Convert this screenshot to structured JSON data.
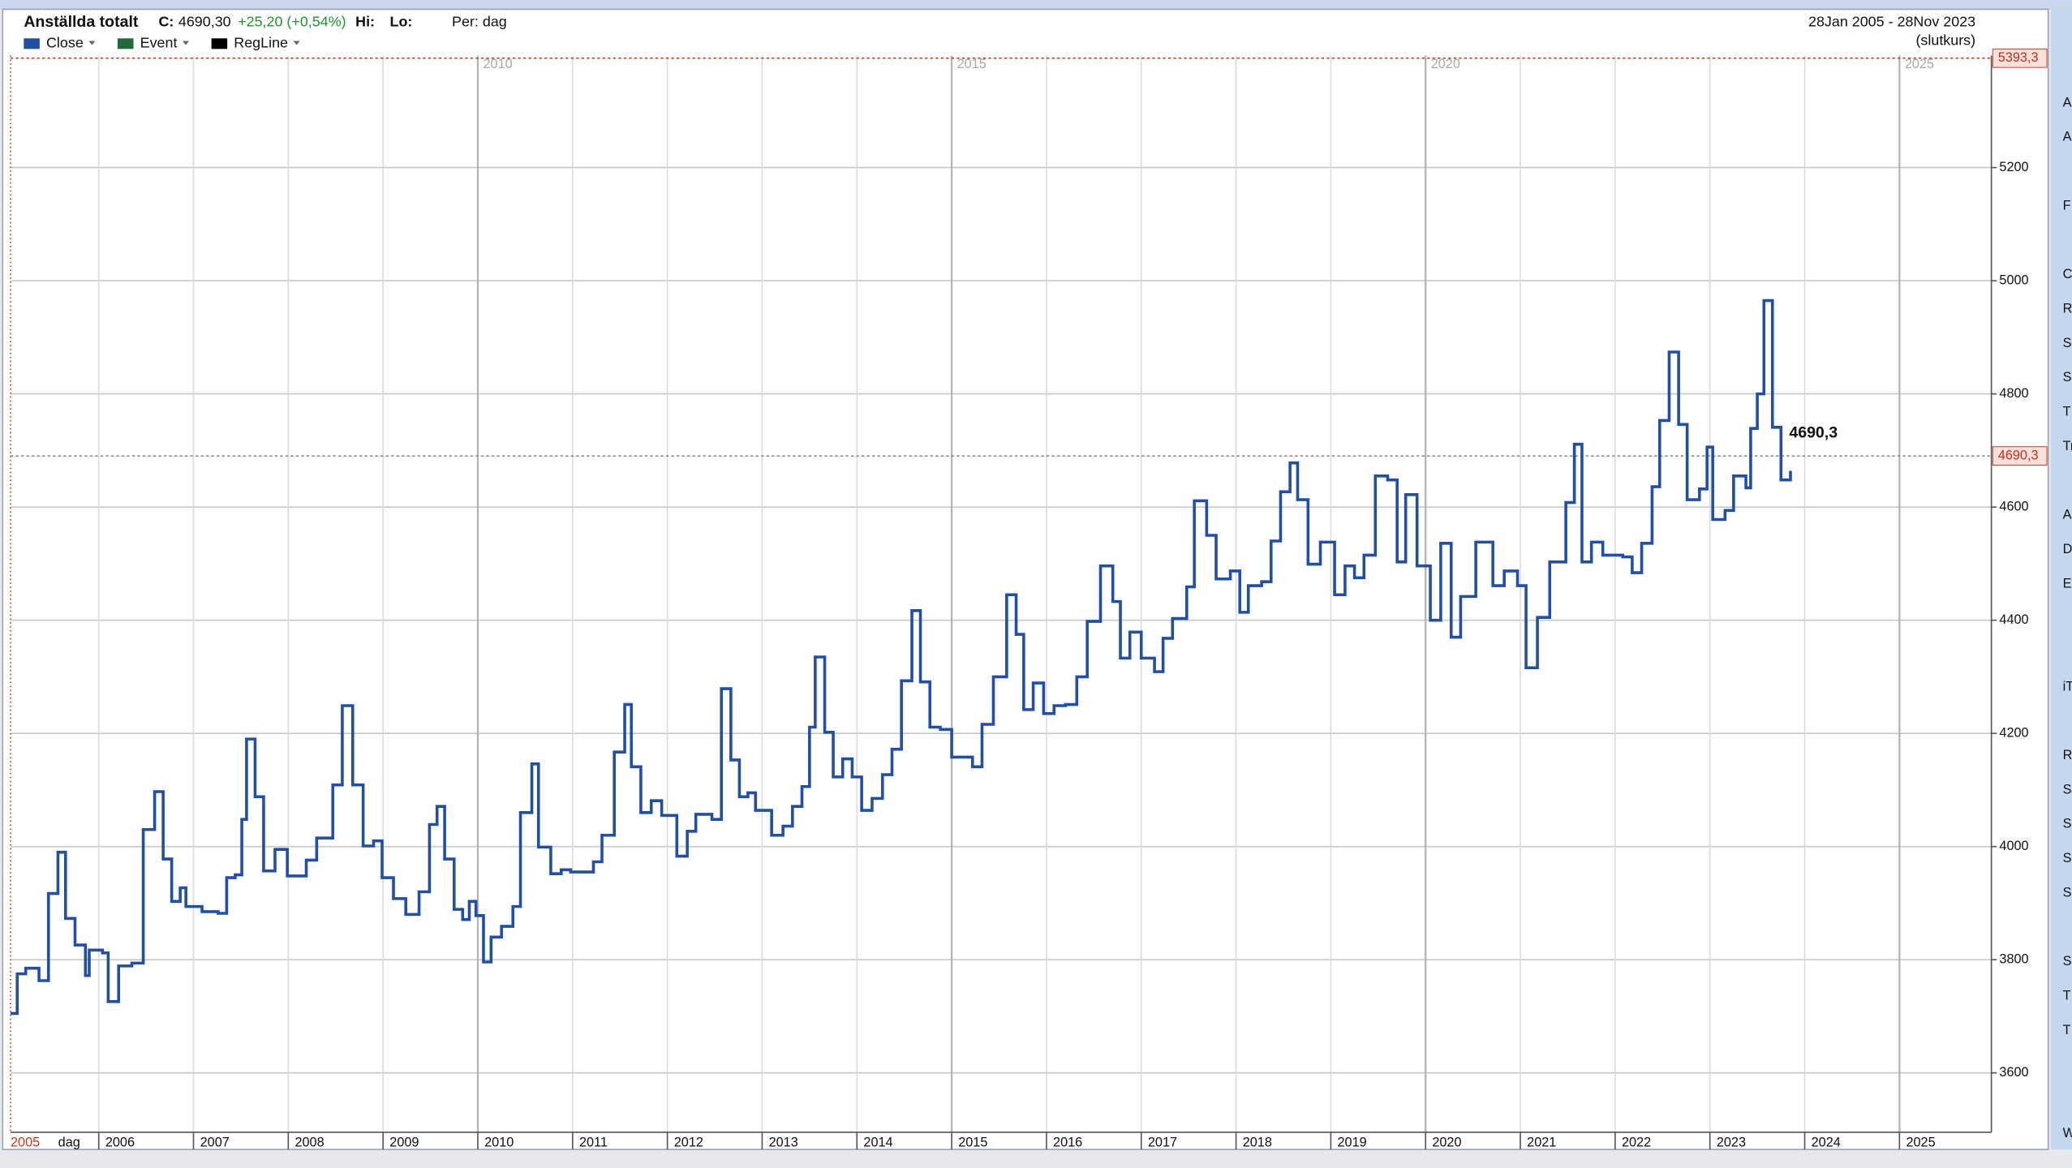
{
  "header": {
    "title": "Anställda totalt",
    "close_label": "C:",
    "close_value": "4690,30",
    "change": "+25,20 (+0,54%)",
    "hi_label": "Hi:",
    "lo_label": "Lo:",
    "period": "Per: dag",
    "date_range": "28Jan 2005 - 28Nov 2023",
    "price_type": "(slutkurs)"
  },
  "legend": [
    {
      "name": "Close",
      "color": "#1f4fa8"
    },
    {
      "name": "Event",
      "color": "#1e6b3c"
    },
    {
      "name": "RegLine",
      "color": "#000000"
    }
  ],
  "sidebar": [
    "A",
    "A",
    "F",
    "C",
    "R",
    "Se",
    "S",
    "T",
    "Tr",
    "A",
    "D",
    "E",
    "iT",
    "RS",
    "S",
    "S",
    "S",
    "S",
    "S",
    "T",
    "T",
    "W"
  ],
  "chart_data": {
    "type": "line",
    "step": true,
    "x": [
      2005.07,
      2005.14,
      2005.23,
      2005.37,
      2005.47,
      2005.57,
      2005.65,
      2005.75,
      2005.86,
      2005.9,
      2006.04,
      2006.1,
      2006.21,
      2006.35,
      2006.47,
      2006.59,
      2006.68,
      2006.77,
      2006.86,
      2006.92,
      2007.09,
      2007.26,
      2007.35,
      2007.44,
      2007.51,
      2007.56,
      2007.65,
      2007.74,
      2007.86,
      2007.99,
      2008.19,
      2008.3,
      2008.47,
      2008.57,
      2008.68,
      2008.79,
      2008.9,
      2008.99,
      2009.11,
      2009.24,
      2009.38,
      2009.49,
      2009.57,
      2009.65,
      2009.75,
      2009.84,
      2009.91,
      2009.98,
      2010.06,
      2010.14,
      2010.25,
      2010.37,
      2010.45,
      2010.57,
      2010.64,
      2010.77,
      2010.88,
      2010.98,
      2011.1,
      2011.22,
      2011.31,
      2011.44,
      2011.55,
      2011.62,
      2011.72,
      2011.83,
      2011.94,
      2012.1,
      2012.21,
      2012.3,
      2012.47,
      2012.57,
      2012.67,
      2012.76,
      2012.85,
      2012.93,
      2013.1,
      2013.22,
      2013.32,
      2013.42,
      2013.5,
      2013.56,
      2013.66,
      2013.75,
      2013.85,
      2013.95,
      2014.05,
      2014.16,
      2014.27,
      2014.37,
      2014.47,
      2014.58,
      2014.67,
      2014.77,
      2014.88,
      2015.0,
      2015.22,
      2015.32,
      2015.44,
      2015.58,
      2015.68,
      2015.76,
      2015.86,
      2015.97,
      2016.08,
      2016.2,
      2016.32,
      2016.43,
      2016.57,
      2016.7,
      2016.78,
      2016.88,
      2017.0,
      2017.14,
      2017.23,
      2017.33,
      2017.48,
      2017.56,
      2017.69,
      2017.79,
      2017.94,
      2018.04,
      2018.13,
      2018.27,
      2018.37,
      2018.47,
      2018.57,
      2018.65,
      2018.76,
      2018.89,
      2019.04,
      2019.15,
      2019.25,
      2019.35,
      2019.47,
      2019.6,
      2019.7,
      2019.79,
      2019.91,
      2020.05,
      2020.16,
      2020.27,
      2020.37,
      2020.53,
      2020.71,
      2020.83,
      2020.97,
      2021.06,
      2021.18,
      2021.31,
      2021.48,
      2021.57,
      2021.65,
      2021.75,
      2021.87,
      2022.08,
      2022.18,
      2022.28,
      2022.39,
      2022.47,
      2022.57,
      2022.67,
      2022.76,
      2022.89,
      2022.97,
      2023.03,
      2023.16,
      2023.25,
      2023.38,
      2023.43,
      2023.5,
      2023.57,
      2023.66,
      2023.75,
      2023.85
    ],
    "series": [
      {
        "name": "Close",
        "color": "#1f4fa8",
        "values": [
          3705,
          3775,
          3785,
          3763,
          3917,
          3990,
          3873,
          3826,
          3772,
          3817,
          3812,
          3726,
          3789,
          3794,
          4030,
          4097,
          3978,
          3903,
          3927,
          3894,
          3885,
          3882,
          3945,
          3950,
          4048,
          4190,
          4088,
          3957,
          3995,
          3948,
          3976,
          4015,
          4109,
          4249,
          4109,
          4001,
          4010,
          3945,
          3908,
          3880,
          3920,
          4039,
          4071,
          3978,
          3889,
          3871,
          3903,
          3878,
          3796,
          3840,
          3859,
          3894,
          4060,
          4146,
          3999,
          3952,
          3959,
          3955,
          3955,
          3973,
          4020,
          4167,
          4251,
          4141,
          4060,
          4081,
          4055,
          3983,
          4027,
          4057,
          4048,
          4279,
          4153,
          4088,
          4095,
          4064,
          4020,
          4036,
          4071,
          4106,
          4211,
          4335,
          4202,
          4123,
          4155,
          4123,
          4064,
          4085,
          4127,
          4172,
          4293,
          4417,
          4291,
          4211,
          4207,
          4158,
          4141,
          4216,
          4300,
          4445,
          4375,
          4242,
          4289,
          4235,
          4249,
          4251,
          4300,
          4398,
          4496,
          4433,
          4333,
          4379,
          4333,
          4309,
          4368,
          4403,
          4459,
          4611,
          4550,
          4473,
          4487,
          4414,
          4461,
          4468,
          4540,
          4627,
          4678,
          4613,
          4499,
          4538,
          4445,
          4496,
          4475,
          4515,
          4655,
          4648,
          4503,
          4622,
          4496,
          4400,
          4536,
          4370,
          4442,
          4538,
          4461,
          4487,
          4461,
          4316,
          4405,
          4503,
          4608,
          4711,
          4503,
          4538,
          4515,
          4512,
          4484,
          4536,
          4636,
          4753,
          4874,
          4746,
          4613,
          4632,
          4706,
          4578,
          4594,
          4655,
          4634,
          4739,
          4800,
          4965,
          4741,
          4648,
          4664
        ]
      }
    ],
    "xlim": [
      2005.07,
      2025.97
    ],
    "xticks": [
      2005,
      2006,
      2007,
      2008,
      2009,
      2010,
      2011,
      2012,
      2013,
      2014,
      2015,
      2016,
      2017,
      2018,
      2019,
      2020,
      2021,
      2022,
      2023,
      2024,
      2025
    ],
    "major_xticks": [
      2010,
      2015,
      2020,
      2025
    ],
    "x_unit_label": "dag",
    "ylim": [
      3495,
      5398
    ],
    "yticks": [
      3600,
      3800,
      4000,
      4200,
      4400,
      4600,
      4800,
      5000,
      5200
    ],
    "markers": [
      {
        "value": 5393.3,
        "label": "5393,3"
      },
      {
        "value": 4690.3,
        "label": "4690,3"
      }
    ],
    "annotation": {
      "value": 4690.3,
      "label": "4690,3"
    },
    "grid": true
  }
}
